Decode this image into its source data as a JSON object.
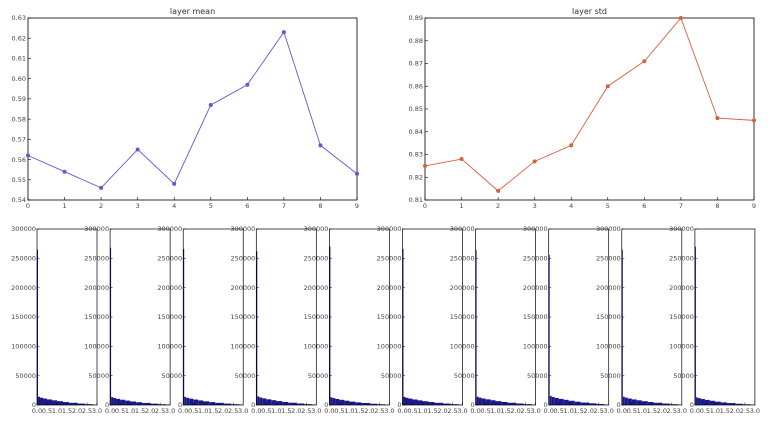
{
  "chart_data": [
    {
      "type": "line",
      "title": "layer mean",
      "xlabel": "",
      "ylabel": "",
      "x": [
        0,
        1,
        2,
        3,
        4,
        5,
        6,
        7,
        8,
        9
      ],
      "series": [
        {
          "values": [
            0.562,
            0.554,
            0.546,
            0.565,
            0.548,
            0.587,
            0.597,
            0.623,
            0.567,
            0.553
          ],
          "color": "#5b5bd6"
        }
      ],
      "xlim": [
        0,
        9
      ],
      "ylim": [
        0.54,
        0.63
      ],
      "xticks": [
        "0",
        "1",
        "2",
        "3",
        "4",
        "5",
        "6",
        "7",
        "8",
        "9"
      ],
      "yticks": [
        "0.54",
        "0.55",
        "0.56",
        "0.57",
        "0.58",
        "0.59",
        "0.60",
        "0.61",
        "0.62",
        "0.63"
      ],
      "grid": false
    },
    {
      "type": "line",
      "title": "layer std",
      "xlabel": "",
      "ylabel": "",
      "x": [
        0,
        1,
        2,
        3,
        4,
        5,
        6,
        7,
        8,
        9
      ],
      "series": [
        {
          "values": [
            0.825,
            0.828,
            0.814,
            0.827,
            0.834,
            0.86,
            0.871,
            0.89,
            0.846,
            0.845
          ],
          "color": "#d4603c"
        }
      ],
      "xlim": [
        0,
        9
      ],
      "ylim": [
        0.81,
        0.89
      ],
      "xticks": [
        "0",
        "1",
        "2",
        "3",
        "4",
        "5",
        "6",
        "7",
        "8",
        "9"
      ],
      "yticks": [
        "0.81",
        "0.82",
        "0.83",
        "0.84",
        "0.85",
        "0.86",
        "0.87",
        "0.88",
        "0.89"
      ],
      "grid": false
    },
    {
      "type": "bar",
      "title": "",
      "description_kind": "histogram-grid",
      "xlim": [
        0,
        3.0
      ],
      "ylim": [
        0,
        300000
      ],
      "xticks": [
        "0.0",
        "0.5",
        "1.0",
        "1.5",
        "2.0",
        "2.5",
        "3.0"
      ],
      "yticks": [
        "0",
        "50000",
        "100000",
        "150000",
        "200000",
        "250000",
        "300000"
      ],
      "color": "#1a1a8c",
      "bin_edges": [
        0,
        0.05,
        0.15,
        0.3,
        0.5,
        0.75,
        1.0,
        1.3,
        1.6,
        2.0,
        2.4,
        2.8,
        3.0
      ],
      "panels": [
        {
          "counts": [
            265000,
            14000,
            12500,
            11000,
            9500,
            8000,
            6500,
            5000,
            3800,
            2500,
            1400,
            600
          ]
        },
        {
          "counts": [
            268000,
            13500,
            12000,
            10500,
            9000,
            7500,
            6000,
            4700,
            3500,
            2300,
            1300,
            550
          ]
        },
        {
          "counts": [
            266000,
            13800,
            12200,
            10800,
            9300,
            7800,
            6300,
            4900,
            3700,
            2400,
            1350,
            580
          ]
        },
        {
          "counts": [
            262000,
            14500,
            12800,
            11300,
            9700,
            8200,
            6700,
            5200,
            3900,
            2600,
            1450,
            620
          ]
        },
        {
          "counts": [
            270000,
            13200,
            11800,
            10300,
            8800,
            7300,
            5800,
            4500,
            3400,
            2200,
            1250,
            520
          ]
        },
        {
          "counts": [
            266000,
            13900,
            12300,
            10900,
            9400,
            7900,
            6400,
            5000,
            3750,
            2450,
            1380,
            600
          ]
        },
        {
          "counts": [
            264000,
            14200,
            12600,
            11100,
            9600,
            8100,
            6600,
            5100,
            3850,
            2550,
            1420,
            610
          ]
        },
        {
          "counts": [
            256000,
            15500,
            13600,
            12000,
            10400,
            8800,
            7200,
            5600,
            4200,
            2800,
            1600,
            700
          ]
        },
        {
          "counts": [
            265000,
            14100,
            12500,
            11000,
            9500,
            8000,
            6500,
            5000,
            3800,
            2500,
            1400,
            600
          ]
        },
        {
          "counts": [
            270000,
            13000,
            11600,
            10200,
            8700,
            7200,
            5700,
            4400,
            3300,
            2150,
            1200,
            500
          ]
        }
      ]
    }
  ]
}
